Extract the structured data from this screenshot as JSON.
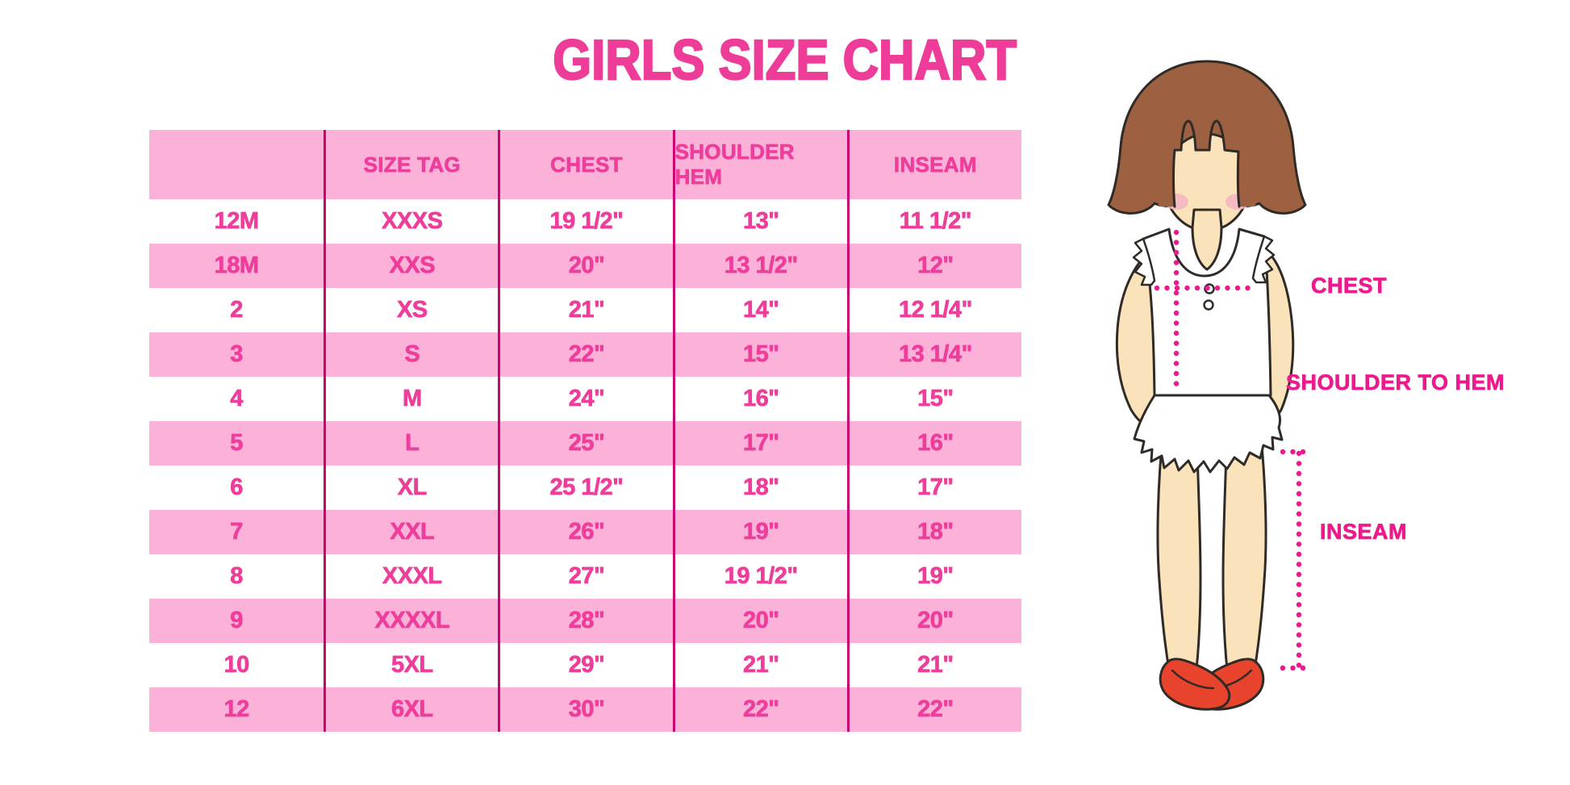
{
  "title": "GIRLS SIZE CHART",
  "chart_data": {
    "type": "table",
    "title": "GIRLS SIZE CHART",
    "columns": [
      "",
      "SIZE TAG",
      "CHEST",
      "SHOULDER HEM",
      "INSEAM"
    ],
    "rows": [
      [
        "12M",
        "XXXS",
        "19 1/2\"",
        "13\"",
        "11 1/2\""
      ],
      [
        "18M",
        "XXS",
        "20\"",
        "13 1/2\"",
        "12\""
      ],
      [
        "2",
        "XS",
        "21\"",
        "14\"",
        "12 1/4\""
      ],
      [
        "3",
        "S",
        "22\"",
        "15\"",
        "13 1/4\""
      ],
      [
        "4",
        "M",
        "24\"",
        "16\"",
        "15\""
      ],
      [
        "5",
        "L",
        "25\"",
        "17\"",
        "16\""
      ],
      [
        "6",
        "XL",
        "25 1/2\"",
        "18\"",
        "17\""
      ],
      [
        "7",
        "XXL",
        "26\"",
        "19\"",
        "18\""
      ],
      [
        "8",
        "XXXL",
        "27\"",
        "19 1/2\"",
        "19\""
      ],
      [
        "9",
        "XXXXL",
        "28\"",
        "20\"",
        "20\""
      ],
      [
        "10",
        "5XL",
        "29\"",
        "21\"",
        "21\""
      ],
      [
        "12",
        "6XL",
        "30\"",
        "22\"",
        "22\""
      ]
    ],
    "layout": {
      "header_bg": "#fbb1d8",
      "row_stripe_colors": [
        "#ffffff",
        "#fbb1d8"
      ],
      "column_divider": "#cb0570",
      "grid": "vertical-dividers-only"
    }
  },
  "figure": {
    "description": "girl-measurement-diagram",
    "labels": {
      "chest": "CHEST",
      "shoulder_to_hem": "SHOULDER TO HEM",
      "inseam": "INSEAM"
    }
  },
  "colors": {
    "title_pink": "#ee3d98",
    "table_row_pink": "#fbb1d8",
    "table_text_pink": "#ee3d9b",
    "column_line_magenta": "#cb0570",
    "label_magenta": "#ed1a8d",
    "dotted_line_magenta": "#ed1a8d",
    "hair_brown": "#9d6141",
    "skin": "#fae3ba",
    "blush": "#f3b3c3",
    "shoe_red": "#e8432c",
    "outline": "#302b27"
  }
}
